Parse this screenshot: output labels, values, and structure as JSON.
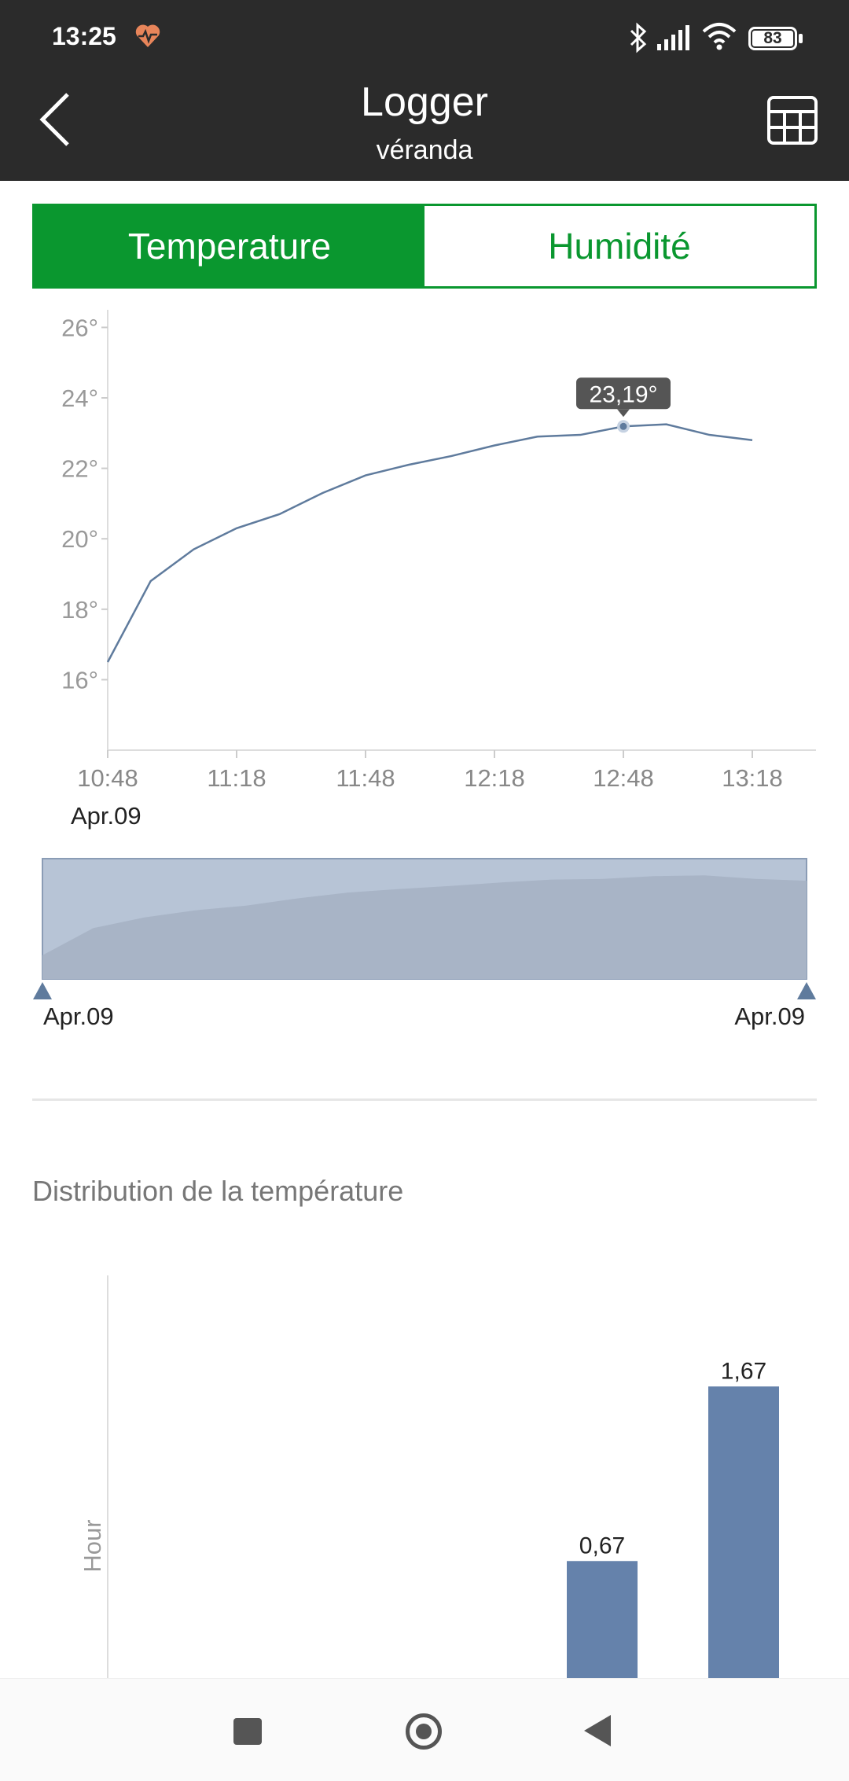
{
  "status": {
    "time": "13:25",
    "battery": "83"
  },
  "header": {
    "title": "Logger",
    "subtitle": "véranda"
  },
  "tabs": [
    {
      "label": "Temperature",
      "active": true
    },
    {
      "label": "Humidité",
      "active": false
    }
  ],
  "colors": {
    "accent_green": "#0a972f",
    "series": "#5f7b9d",
    "bars": "#6582ab",
    "header_bg": "#2b2b2b"
  },
  "icons": {
    "back": "chevron-left-icon",
    "table": "table-grid-icon"
  },
  "chart_data": [
    {
      "type": "line",
      "x_ticks": [
        "10:48",
        "11:18",
        "11:48",
        "12:18",
        "12:48",
        "13:18"
      ],
      "x_date": "Apr.09",
      "y_ticks": [
        "26°",
        "24°",
        "22°",
        "20°",
        "18°",
        "16°"
      ],
      "ylim": [
        14,
        26.5
      ],
      "x_minutes": [
        0,
        10,
        20,
        30,
        40,
        50,
        60,
        70,
        80,
        90,
        100,
        110,
        120,
        130,
        140,
        150
      ],
      "x": [
        "10:48",
        "10:58",
        "11:08",
        "11:18",
        "11:28",
        "11:38",
        "11:48",
        "11:58",
        "12:08",
        "12:18",
        "12:28",
        "12:38",
        "12:48",
        "12:58",
        "13:08",
        "13:18"
      ],
      "values": [
        16.5,
        18.8,
        19.7,
        20.3,
        20.7,
        21.3,
        21.8,
        22.1,
        22.35,
        22.65,
        22.9,
        22.95,
        23.19,
        23.25,
        22.95,
        22.8
      ],
      "tooltip": {
        "label": "23,19°",
        "index": 12
      },
      "grid": false
    },
    {
      "type": "bar",
      "title": "Distribution de la température",
      "ylabel": "Hour",
      "values": [
        0,
        0,
        0,
        0.67,
        1.67
      ],
      "value_labels": [
        "",
        "",
        "",
        "0,67",
        "1,67"
      ]
    }
  ],
  "range": {
    "left_label": "Apr.09",
    "right_label": "Apr.09"
  }
}
